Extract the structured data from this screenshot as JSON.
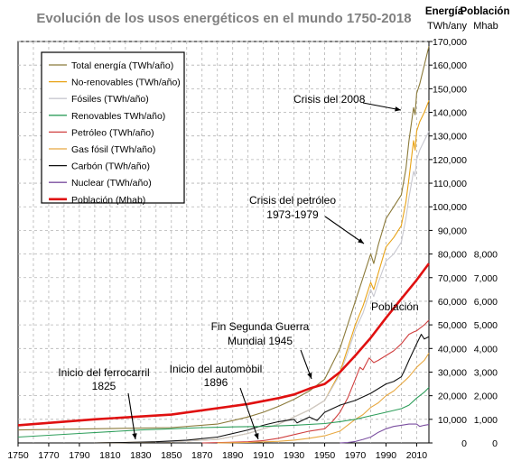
{
  "chart_data": {
    "type": "line",
    "title": "Evolución de los usos energéticos en el mundo 1750-2018",
    "headers": {
      "energy": "Energía",
      "population": "Población",
      "energy_unit": "TWh/any",
      "population_unit": "Mhab"
    },
    "x": {
      "min": 1750,
      "max": 2018,
      "ticks": [
        1750,
        1770,
        1790,
        1810,
        1830,
        1850,
        1870,
        1890,
        1910,
        1930,
        1950,
        1970,
        1990,
        2010
      ]
    },
    "y_energy": {
      "min": 0,
      "max": 170000,
      "ticks": [
        "0",
        "10,000",
        "20,000",
        "30,000",
        "40,000",
        "50,000",
        "60,000",
        "70,000",
        "80,000",
        "90,000",
        "100,000",
        "110,000",
        "120,000",
        "130,000",
        "140,000",
        "150,000",
        "160,000",
        "170,000"
      ]
    },
    "y_population": {
      "min": 0,
      "max": 17000,
      "ticks": [
        "0",
        "1,000",
        "2,000",
        "3,000",
        "4,000",
        "5,000",
        "6,000",
        "7,000",
        "8,000"
      ]
    },
    "grid": true,
    "legend_position": "top-left",
    "series": [
      {
        "name": "Total energía (TWh/año)",
        "color": "#8B7A3A",
        "axis": "energy",
        "points": [
          [
            1750,
            5500
          ],
          [
            1800,
            6000
          ],
          [
            1850,
            6500
          ],
          [
            1880,
            8000
          ],
          [
            1900,
            11000
          ],
          [
            1910,
            13000
          ],
          [
            1920,
            15500
          ],
          [
            1930,
            18500
          ],
          [
            1940,
            22000
          ],
          [
            1950,
            27000
          ],
          [
            1960,
            40000
          ],
          [
            1965,
            50000
          ],
          [
            1970,
            60000
          ],
          [
            1975,
            70000
          ],
          [
            1980,
            80000
          ],
          [
            1982,
            76000
          ],
          [
            1985,
            84000
          ],
          [
            1990,
            95000
          ],
          [
            1995,
            100000
          ],
          [
            2000,
            105000
          ],
          [
            2003,
            116000
          ],
          [
            2005,
            128000
          ],
          [
            2008,
            142000
          ],
          [
            2009,
            139000
          ],
          [
            2010,
            148000
          ],
          [
            2012,
            152000
          ],
          [
            2015,
            160000
          ],
          [
            2018,
            168000
          ]
        ]
      },
      {
        "name": "No-renovables (TWh/año)",
        "color": "#E8A317",
        "axis": "energy",
        "points": [
          [
            1800,
            0
          ],
          [
            1850,
            500
          ],
          [
            1880,
            1500
          ],
          [
            1900,
            4000
          ],
          [
            1920,
            8000
          ],
          [
            1940,
            14000
          ],
          [
            1950,
            18000
          ],
          [
            1960,
            30000
          ],
          [
            1965,
            40000
          ],
          [
            1970,
            50000
          ],
          [
            1975,
            58000
          ],
          [
            1980,
            68000
          ],
          [
            1982,
            65000
          ],
          [
            1985,
            72000
          ],
          [
            1990,
            83000
          ],
          [
            1995,
            87000
          ],
          [
            2000,
            92000
          ],
          [
            2003,
            102000
          ],
          [
            2005,
            112000
          ],
          [
            2008,
            128000
          ],
          [
            2009,
            124000
          ],
          [
            2010,
            132000
          ],
          [
            2012,
            136000
          ],
          [
            2015,
            140000
          ],
          [
            2018,
            145000
          ]
        ]
      },
      {
        "name": "Fósiles (TWh/año)",
        "color": "#C8C8D0",
        "axis": "energy",
        "points": [
          [
            1800,
            0
          ],
          [
            1850,
            500
          ],
          [
            1880,
            1500
          ],
          [
            1900,
            4000
          ],
          [
            1920,
            8000
          ],
          [
            1940,
            14000
          ],
          [
            1950,
            18000
          ],
          [
            1960,
            29000
          ],
          [
            1965,
            38000
          ],
          [
            1970,
            48000
          ],
          [
            1975,
            55000
          ],
          [
            1980,
            65000
          ],
          [
            1982,
            62000
          ],
          [
            1985,
            68000
          ],
          [
            1990,
            77000
          ],
          [
            1995,
            80000
          ],
          [
            2000,
            85000
          ],
          [
            2003,
            95000
          ],
          [
            2005,
            104000
          ],
          [
            2008,
            115000
          ],
          [
            2009,
            113000
          ],
          [
            2010,
            120000
          ],
          [
            2012,
            124000
          ],
          [
            2015,
            128000
          ],
          [
            2018,
            132000
          ]
        ]
      },
      {
        "name": "Renovables TWh/año)",
        "color": "#2E9E5B",
        "axis": "energy",
        "points": [
          [
            1750,
            2500
          ],
          [
            1790,
            4000
          ],
          [
            1830,
            5500
          ],
          [
            1850,
            6000
          ],
          [
            1870,
            6500
          ],
          [
            1890,
            6800
          ],
          [
            1910,
            7000
          ],
          [
            1930,
            7500
          ],
          [
            1950,
            8200
          ],
          [
            1960,
            9000
          ],
          [
            1970,
            10000
          ],
          [
            1980,
            11500
          ],
          [
            1990,
            13000
          ],
          [
            2000,
            14500
          ],
          [
            2005,
            16000
          ],
          [
            2010,
            19000
          ],
          [
            2015,
            21500
          ],
          [
            2018,
            23500
          ]
        ]
      },
      {
        "name": "Petróleo (TWh/año)",
        "color": "#D04040",
        "axis": "energy",
        "points": [
          [
            1870,
            0
          ],
          [
            1890,
            300
          ],
          [
            1900,
            500
          ],
          [
            1910,
            1000
          ],
          [
            1920,
            2000
          ],
          [
            1930,
            3500
          ],
          [
            1940,
            5000
          ],
          [
            1950,
            6000
          ],
          [
            1955,
            9000
          ],
          [
            1960,
            13000
          ],
          [
            1965,
            19000
          ],
          [
            1970,
            27000
          ],
          [
            1973,
            32000
          ],
          [
            1975,
            31000
          ],
          [
            1979,
            36000
          ],
          [
            1982,
            34000
          ],
          [
            1985,
            35000
          ],
          [
            1990,
            37000
          ],
          [
            1995,
            39000
          ],
          [
            2000,
            42000
          ],
          [
            2005,
            46000
          ],
          [
            2008,
            47000
          ],
          [
            2010,
            47500
          ],
          [
            2015,
            50000
          ],
          [
            2018,
            52000
          ]
        ]
      },
      {
        "name": "Gas fósil (TWh/año)",
        "color": "#E8A840",
        "axis": "energy",
        "points": [
          [
            1880,
            0
          ],
          [
            1900,
            200
          ],
          [
            1920,
            700
          ],
          [
            1930,
            1200
          ],
          [
            1940,
            2000
          ],
          [
            1950,
            3000
          ],
          [
            1960,
            5000
          ],
          [
            1970,
            10000
          ],
          [
            1975,
            12000
          ],
          [
            1980,
            15000
          ],
          [
            1985,
            17000
          ],
          [
            1990,
            20000
          ],
          [
            1995,
            22000
          ],
          [
            2000,
            25000
          ],
          [
            2005,
            28000
          ],
          [
            2010,
            32000
          ],
          [
            2015,
            35000
          ],
          [
            2018,
            38000
          ]
        ]
      },
      {
        "name": "Carbón (TWh/año)",
        "color": "#111111",
        "axis": "energy",
        "points": [
          [
            1800,
            0
          ],
          [
            1820,
            200
          ],
          [
            1840,
            500
          ],
          [
            1860,
            1200
          ],
          [
            1880,
            2500
          ],
          [
            1900,
            5500
          ],
          [
            1910,
            7500
          ],
          [
            1913,
            8000
          ],
          [
            1920,
            9000
          ],
          [
            1930,
            10000
          ],
          [
            1932,
            8500
          ],
          [
            1940,
            11000
          ],
          [
            1945,
            9500
          ],
          [
            1950,
            13000
          ],
          [
            1960,
            16000
          ],
          [
            1970,
            18000
          ],
          [
            1980,
            21000
          ],
          [
            1990,
            25000
          ],
          [
            1995,
            26000
          ],
          [
            2000,
            28000
          ],
          [
            2003,
            32000
          ],
          [
            2005,
            35000
          ],
          [
            2010,
            42000
          ],
          [
            2013,
            46000
          ],
          [
            2015,
            44000
          ],
          [
            2018,
            45000
          ]
        ]
      },
      {
        "name": "Nuclear (TWh/año)",
        "color": "#7B4FA0",
        "axis": "energy",
        "points": [
          [
            1960,
            0
          ],
          [
            1965,
            200
          ],
          [
            1970,
            600
          ],
          [
            1975,
            1500
          ],
          [
            1980,
            2500
          ],
          [
            1985,
            4500
          ],
          [
            1990,
            6000
          ],
          [
            1995,
            7000
          ],
          [
            2000,
            7500
          ],
          [
            2005,
            8000
          ],
          [
            2010,
            8000
          ],
          [
            2012,
            7000
          ],
          [
            2015,
            7500
          ],
          [
            2018,
            7800
          ]
        ]
      },
      {
        "name": "Población (Mhab)",
        "color": "#E01010",
        "axis": "population",
        "points": [
          [
            1750,
            750
          ],
          [
            1800,
            1000
          ],
          [
            1850,
            1200
          ],
          [
            1900,
            1650
          ],
          [
            1920,
            1900
          ],
          [
            1930,
            2050
          ],
          [
            1940,
            2300
          ],
          [
            1950,
            2500
          ],
          [
            1960,
            3000
          ],
          [
            1970,
            3700
          ],
          [
            1980,
            4450
          ],
          [
            1990,
            5300
          ],
          [
            2000,
            6100
          ],
          [
            2010,
            6900
          ],
          [
            2018,
            7600
          ]
        ]
      }
    ],
    "annotations": [
      {
        "text": "Crisis del 2008"
      },
      {
        "text": "Crisis del petróleo"
      },
      {
        "text": "1973-1979"
      },
      {
        "text": "Población"
      },
      {
        "text": "Fin Segunda Guerra"
      },
      {
        "text": "Mundial 1945"
      },
      {
        "text": "Inicio del automòbil"
      },
      {
        "text": "1896"
      },
      {
        "text": "Inicio del ferrocarril"
      },
      {
        "text": "1825"
      }
    ]
  }
}
